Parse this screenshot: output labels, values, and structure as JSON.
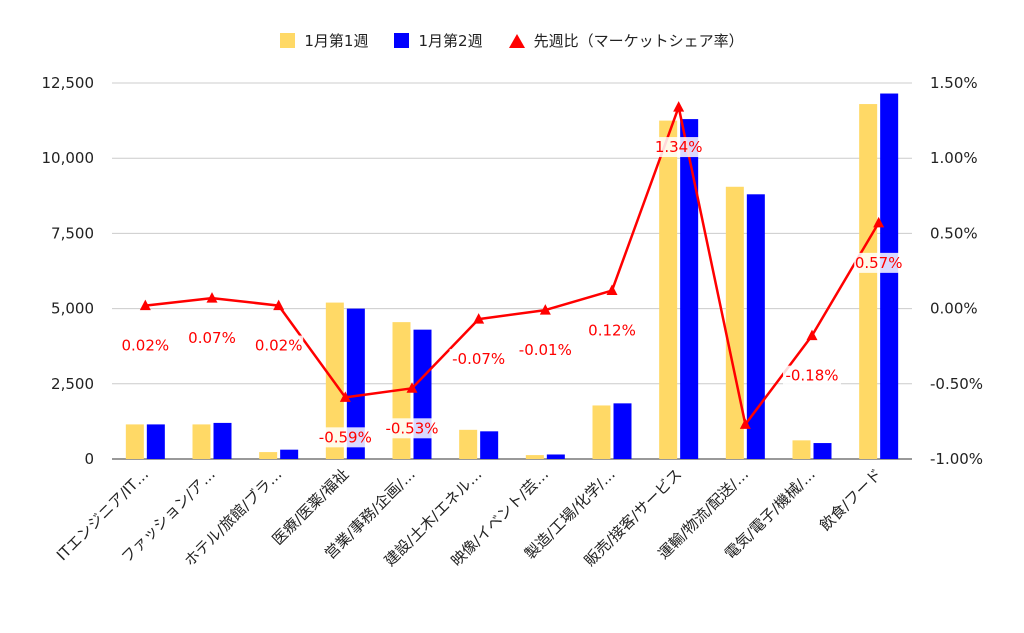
{
  "chart_data": {
    "type": "bar",
    "categories": [
      "ITエンジニア/IT…",
      "ファッション/ア…",
      "ホテル/旅館/ブラ…",
      "医療/医薬/福祉",
      "営業/事務/企画/…",
      "建設/土木/エネル…",
      "映像/イベント/芸…",
      "製造/工場/化学/…",
      "販売/接客/サービス",
      "運輸/物流/配送/…",
      "電気/電子/機械/…",
      "飲食/フード"
    ],
    "series": [
      {
        "name": "1月第1週",
        "type": "bar",
        "axis": "left",
        "color": "#ffd966",
        "values": [
          1150,
          1150,
          230,
          5200,
          4550,
          970,
          130,
          1780,
          11250,
          9050,
          620,
          11800
        ]
      },
      {
        "name": "1月第2週",
        "type": "bar",
        "axis": "left",
        "color": "#0000ff",
        "values": [
          1150,
          1200,
          310,
          5000,
          4300,
          920,
          150,
          1850,
          11300,
          8800,
          530,
          12150
        ]
      },
      {
        "name": "先週比（マーケットシェア率）",
        "type": "line",
        "axis": "right",
        "color": "#ff0000",
        "values": [
          0.02,
          0.07,
          0.02,
          -0.59,
          -0.53,
          -0.07,
          -0.01,
          0.12,
          1.34,
          -0.77,
          -0.18,
          0.57
        ],
        "data_labels": [
          "0.02%",
          "0.07%",
          "0.02%",
          "-0.59%",
          "-0.53%",
          "-0.07%",
          "-0.01%",
          "0.12%",
          "1.34%",
          "",
          "-0.18%",
          "0.57%"
        ]
      }
    ],
    "ylim": [
      0,
      12500
    ],
    "yticks": [
      "0",
      "2,500",
      "5,000",
      "7,500",
      "10,000",
      "12,500"
    ],
    "y2lim": [
      -1.0,
      1.5
    ],
    "y2ticks": [
      "-1.00%",
      "-0.50%",
      "0.00%",
      "0.50%",
      "1.00%",
      "1.50%"
    ],
    "grid": true,
    "legend_position": "top"
  }
}
